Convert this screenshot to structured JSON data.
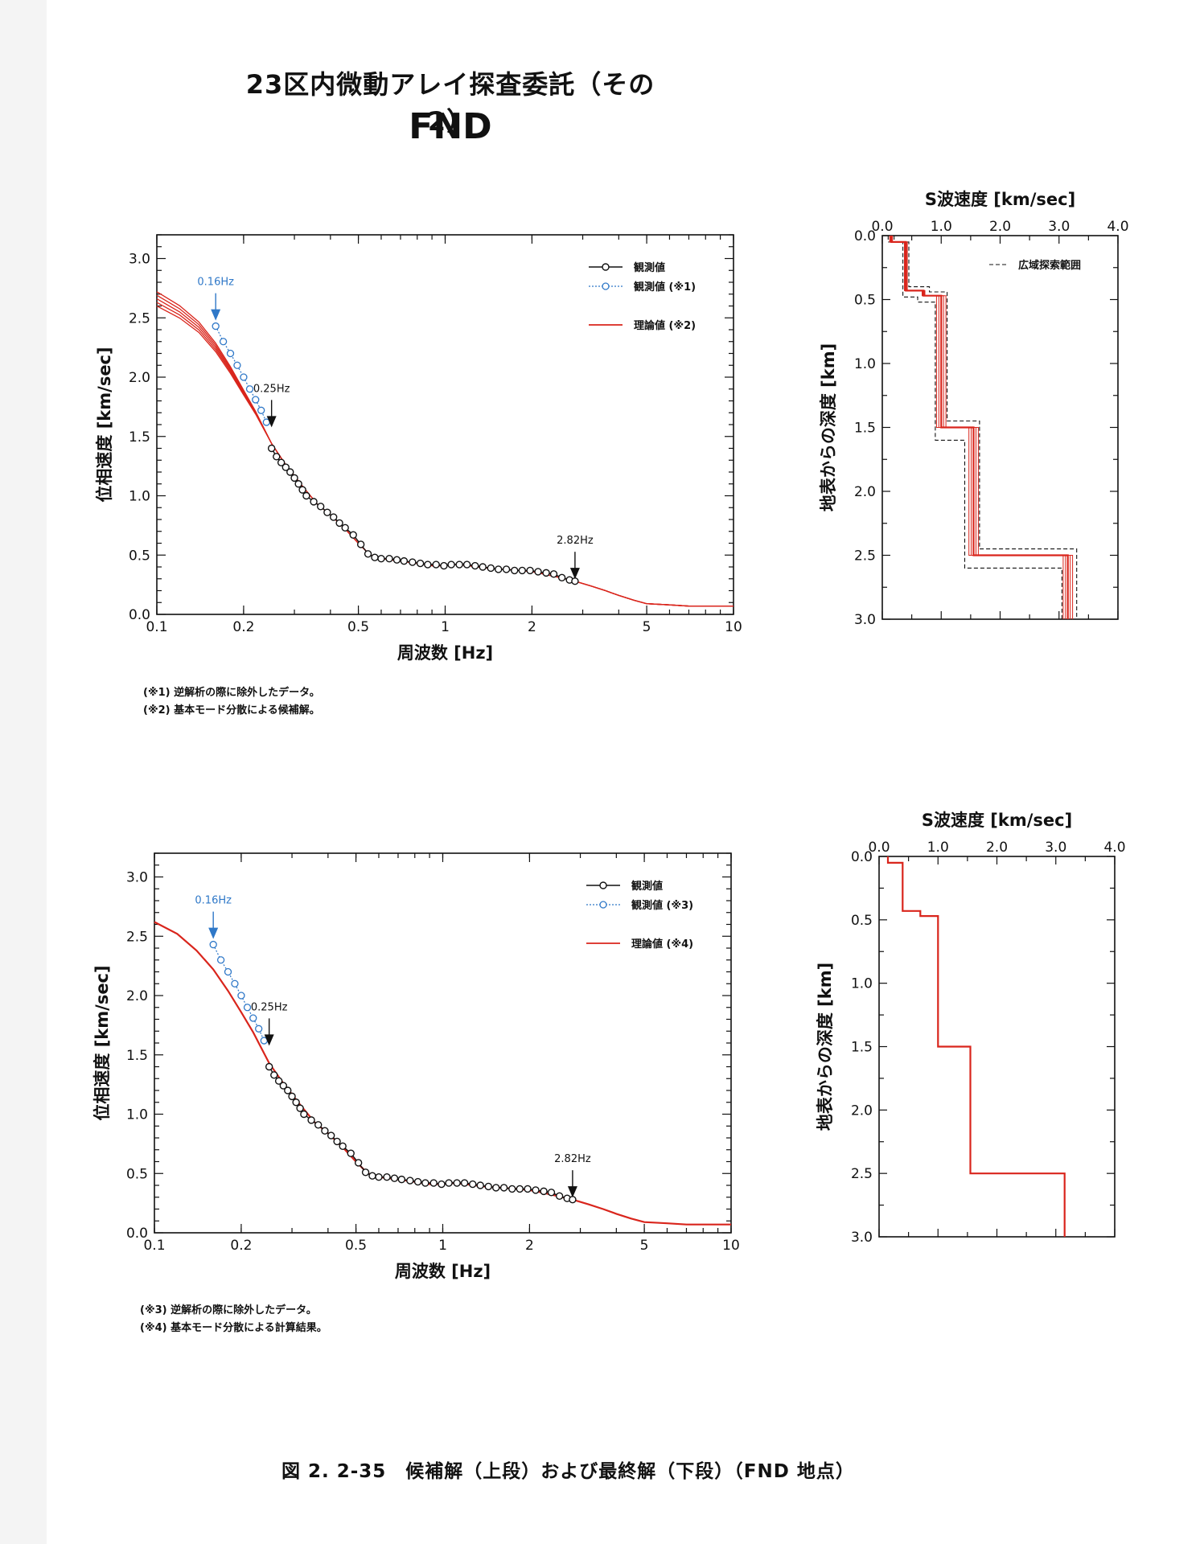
{
  "doc": {
    "title": "23区内微動アレイ探査委託（その2）",
    "subtitle": "FND",
    "caption": "図 2. 2-35　候補解（上段）および最終解（下段）（FND 地点）",
    "notes_top": [
      "(※1) 逆解析の際に除外したデータ。",
      "(※2) 基本モード分散による候補解。"
    ],
    "notes_bottom": [
      "(※3) 逆解析の際に除外したデータ。",
      "(※4) 基本モード分散による計算結果。"
    ]
  },
  "chart_data": [
    {
      "type": "line",
      "xscale": "log",
      "xlabel": "周波数 [Hz]",
      "ylabel": "位相速度 [km/sec]",
      "xlim": [
        0.1,
        10
      ],
      "ylim": [
        0.0,
        3.2
      ],
      "xticks": [
        "0.1",
        "0.2",
        "0.5",
        "1",
        "2",
        "5",
        "10"
      ],
      "yticks": [
        "0.0",
        "0.5",
        "1.0",
        "1.5",
        "2.0",
        "2.5",
        "3.0"
      ],
      "legend": [
        "観測値",
        "観測値 (※1)",
        "理論値 (※2)"
      ],
      "annotations": [
        {
          "text": "0.16Hz",
          "x": 0.16,
          "y": 2.45,
          "color": "#2f78c8"
        },
        {
          "text": "0.25Hz",
          "x": 0.25,
          "y": 1.55,
          "color": "#111111"
        },
        {
          "text": "2.82Hz",
          "x": 2.82,
          "y": 0.27,
          "color": "#111111"
        }
      ],
      "observed": {
        "x": [
          0.25,
          0.26,
          0.27,
          0.28,
          0.29,
          0.3,
          0.31,
          0.32,
          0.33,
          0.35,
          0.37,
          0.39,
          0.41,
          0.43,
          0.45,
          0.48,
          0.51,
          0.54,
          0.57,
          0.6,
          0.64,
          0.68,
          0.72,
          0.77,
          0.82,
          0.87,
          0.93,
          0.99,
          1.05,
          1.12,
          1.19,
          1.27,
          1.35,
          1.44,
          1.53,
          1.63,
          1.74,
          1.85,
          1.97,
          2.1,
          2.24,
          2.38,
          2.54,
          2.7,
          2.82
        ],
        "y": [
          1.4,
          1.33,
          1.28,
          1.24,
          1.2,
          1.15,
          1.1,
          1.05,
          1.0,
          0.95,
          0.91,
          0.86,
          0.82,
          0.77,
          0.73,
          0.67,
          0.59,
          0.51,
          0.48,
          0.47,
          0.47,
          0.46,
          0.45,
          0.44,
          0.43,
          0.42,
          0.42,
          0.41,
          0.42,
          0.42,
          0.42,
          0.41,
          0.4,
          0.39,
          0.38,
          0.38,
          0.37,
          0.37,
          0.37,
          0.36,
          0.35,
          0.34,
          0.31,
          0.29,
          0.28
        ]
      },
      "excluded": {
        "x": [
          0.16,
          0.17,
          0.18,
          0.19,
          0.2,
          0.21,
          0.22,
          0.23,
          0.24
        ],
        "y": [
          2.43,
          2.3,
          2.2,
          2.1,
          2.0,
          1.9,
          1.81,
          1.72,
          1.62
        ]
      },
      "theoretical": {
        "x": [
          0.1,
          0.12,
          0.14,
          0.16,
          0.18,
          0.2,
          0.22,
          0.25,
          0.28,
          0.32,
          0.36,
          0.4,
          0.45,
          0.5,
          0.55,
          0.6,
          0.7,
          0.8,
          0.9,
          1.0,
          1.1,
          1.2,
          1.4,
          1.6,
          1.8,
          2.0,
          2.2,
          2.5,
          2.82,
          3.2,
          3.6,
          4.0,
          4.5,
          5.0,
          6.0,
          7.0,
          8.0,
          10.0
        ],
        "y": [
          2.66,
          2.55,
          2.42,
          2.25,
          2.06,
          1.87,
          1.7,
          1.44,
          1.26,
          1.08,
          0.93,
          0.84,
          0.72,
          0.6,
          0.5,
          0.47,
          0.45,
          0.43,
          0.41,
          0.41,
          0.42,
          0.41,
          0.39,
          0.38,
          0.37,
          0.36,
          0.34,
          0.31,
          0.28,
          0.24,
          0.2,
          0.16,
          0.12,
          0.09,
          0.08,
          0.07,
          0.07,
          0.07
        ]
      },
      "candidate_spread": [
        -0.06,
        -0.03,
        0.0,
        0.03,
        0.06
      ]
    },
    {
      "type": "line",
      "xlabel": "S波速度 [km/sec]",
      "ylabel": "地表からの深度 [km]",
      "xlim": [
        0.0,
        4.0
      ],
      "ylim": [
        3.0,
        0.0
      ],
      "xticks": [
        "0.0",
        "1.0",
        "2.0",
        "3.0",
        "4.0"
      ],
      "yticks": [
        "0.0",
        "0.5",
        "1.0",
        "1.5",
        "2.0",
        "2.5",
        "3.0"
      ],
      "legend": [
        "広域探索範囲"
      ],
      "profile": {
        "depth": [
          0.0,
          0.05,
          0.43,
          0.47,
          1.5,
          2.5,
          3.0
        ],
        "vs": [
          0.15,
          0.4,
          0.7,
          1.0,
          1.55,
          3.15
        ]
      },
      "range_min": {
        "depth": [
          0.0,
          0.05,
          0.48,
          0.52,
          1.6,
          2.6,
          3.0
        ],
        "vs": [
          0.1,
          0.35,
          0.6,
          0.9,
          1.4,
          3.05
        ]
      },
      "range_max": {
        "depth": [
          0.0,
          0.05,
          0.4,
          0.44,
          1.45,
          2.45,
          3.0
        ],
        "vs": [
          0.2,
          0.45,
          0.8,
          1.1,
          1.65,
          3.3
        ]
      },
      "candidate_offsets": [
        -0.08,
        -0.04,
        0.04,
        0.08
      ]
    },
    {
      "type": "line",
      "xscale": "log",
      "xlabel": "周波数 [Hz]",
      "ylabel": "位相速度 [km/sec]",
      "xlim": [
        0.1,
        10
      ],
      "ylim": [
        0.0,
        3.2
      ],
      "xticks": [
        "0.1",
        "0.2",
        "0.5",
        "1",
        "2",
        "5",
        "10"
      ],
      "yticks": [
        "0.0",
        "0.5",
        "1.0",
        "1.5",
        "2.0",
        "2.5",
        "3.0"
      ],
      "legend": [
        "観測値",
        "観測値 (※3)",
        "理論値 (※4)"
      ],
      "annotations": [
        {
          "text": "0.16Hz",
          "x": 0.16,
          "y": 2.45,
          "color": "#2f78c8"
        },
        {
          "text": "0.25Hz",
          "x": 0.25,
          "y": 1.55,
          "color": "#111111"
        },
        {
          "text": "2.82Hz",
          "x": 2.82,
          "y": 0.27,
          "color": "#111111"
        }
      ],
      "observed": {
        "x": [
          0.25,
          0.26,
          0.27,
          0.28,
          0.29,
          0.3,
          0.31,
          0.32,
          0.33,
          0.35,
          0.37,
          0.39,
          0.41,
          0.43,
          0.45,
          0.48,
          0.51,
          0.54,
          0.57,
          0.6,
          0.64,
          0.68,
          0.72,
          0.77,
          0.82,
          0.87,
          0.93,
          0.99,
          1.05,
          1.12,
          1.19,
          1.27,
          1.35,
          1.44,
          1.53,
          1.63,
          1.74,
          1.85,
          1.97,
          2.1,
          2.24,
          2.38,
          2.54,
          2.7,
          2.82
        ],
        "y": [
          1.4,
          1.33,
          1.28,
          1.24,
          1.2,
          1.15,
          1.1,
          1.05,
          1.0,
          0.95,
          0.91,
          0.86,
          0.82,
          0.77,
          0.73,
          0.67,
          0.59,
          0.51,
          0.48,
          0.47,
          0.47,
          0.46,
          0.45,
          0.44,
          0.43,
          0.42,
          0.42,
          0.41,
          0.42,
          0.42,
          0.42,
          0.41,
          0.4,
          0.39,
          0.38,
          0.38,
          0.37,
          0.37,
          0.37,
          0.36,
          0.35,
          0.34,
          0.31,
          0.29,
          0.28
        ]
      },
      "excluded": {
        "x": [
          0.16,
          0.17,
          0.18,
          0.19,
          0.2,
          0.21,
          0.22,
          0.23,
          0.24
        ],
        "y": [
          2.43,
          2.3,
          2.2,
          2.1,
          2.0,
          1.9,
          1.81,
          1.72,
          1.62
        ]
      },
      "theoretical": {
        "x": [
          0.1,
          0.12,
          0.14,
          0.16,
          0.18,
          0.2,
          0.22,
          0.25,
          0.28,
          0.32,
          0.36,
          0.4,
          0.45,
          0.5,
          0.55,
          0.6,
          0.7,
          0.8,
          0.9,
          1.0,
          1.1,
          1.2,
          1.4,
          1.6,
          1.8,
          2.0,
          2.2,
          2.5,
          2.82,
          3.2,
          3.6,
          4.0,
          4.5,
          5.0,
          6.0,
          7.0,
          8.0,
          10.0
        ],
        "y": [
          2.62,
          2.52,
          2.38,
          2.22,
          2.04,
          1.86,
          1.69,
          1.43,
          1.26,
          1.08,
          0.93,
          0.84,
          0.72,
          0.6,
          0.5,
          0.47,
          0.45,
          0.43,
          0.41,
          0.41,
          0.42,
          0.41,
          0.39,
          0.38,
          0.37,
          0.36,
          0.34,
          0.31,
          0.28,
          0.24,
          0.2,
          0.16,
          0.12,
          0.09,
          0.08,
          0.07,
          0.07,
          0.07
        ]
      }
    },
    {
      "type": "line",
      "xlabel": "S波速度 [km/sec]",
      "ylabel": "地表からの深度 [km]",
      "xlim": [
        0.0,
        4.0
      ],
      "ylim": [
        3.0,
        0.0
      ],
      "xticks": [
        "0.0",
        "1.0",
        "2.0",
        "3.0",
        "4.0"
      ],
      "yticks": [
        "0.0",
        "0.5",
        "1.0",
        "1.5",
        "2.0",
        "2.5",
        "3.0"
      ],
      "profile": {
        "depth": [
          0.0,
          0.05,
          0.43,
          0.47,
          1.5,
          2.5,
          3.0
        ],
        "vs": [
          0.15,
          0.4,
          0.7,
          1.0,
          1.55,
          3.15
        ]
      }
    }
  ]
}
